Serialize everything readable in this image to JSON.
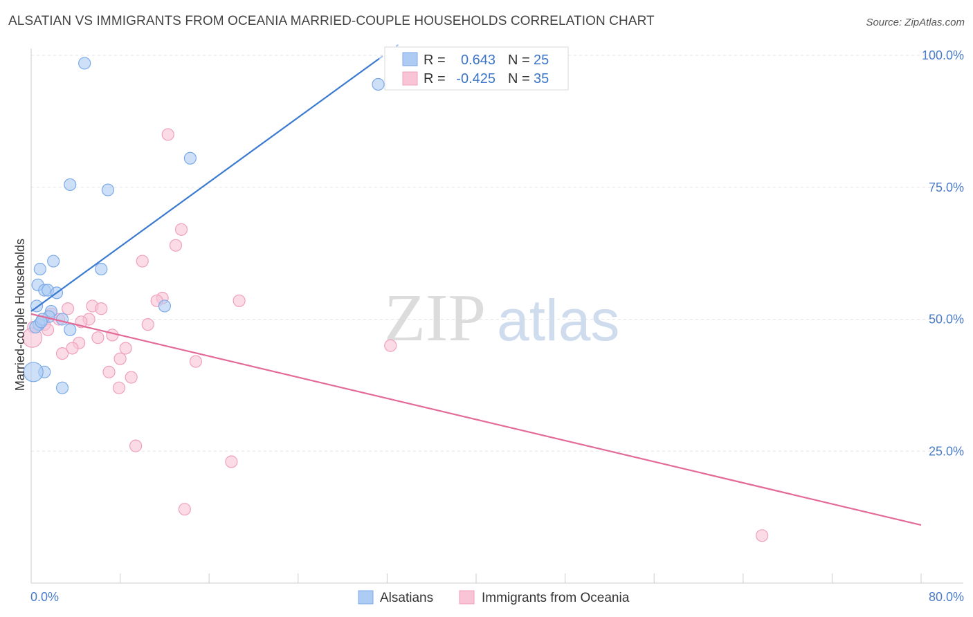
{
  "header": {
    "title": "ALSATIAN VS IMMIGRANTS FROM OCEANIA MARRIED-COUPLE HOUSEHOLDS CORRELATION CHART",
    "source": "Source: ZipAtlas.com"
  },
  "watermark": {
    "zip": "ZIP",
    "atlas": "atlas"
  },
  "chart_data": {
    "type": "scatter",
    "ylabel": "Married-couple Households",
    "xlim": [
      0,
      80
    ],
    "ylim": [
      0,
      105
    ],
    "x_tick_labels": [
      {
        "value": 0,
        "label": "0.0%"
      },
      {
        "value": 80,
        "label": "80.0%"
      }
    ],
    "y_tick_labels": [
      {
        "value": 100,
        "label": "100.0%"
      },
      {
        "value": 75,
        "label": "75.0%"
      },
      {
        "value": 50,
        "label": "50.0%"
      },
      {
        "value": 25,
        "label": "25.0%"
      }
    ],
    "y_gridlines": [
      100,
      75,
      50,
      25
    ],
    "x_minor_ticks": [
      0,
      8,
      16,
      24,
      32,
      40,
      48,
      56,
      64,
      72,
      80
    ],
    "stats": [
      {
        "r_label": "R =",
        "r": "0.643",
        "n_label": "N =",
        "n": "25"
      },
      {
        "r_label": "R =",
        "r": "-0.425",
        "n_label": "N =",
        "n": "35"
      }
    ],
    "series": [
      {
        "name": "Alsatians",
        "color": "#7baae8",
        "fill": "#aecbf3",
        "line_color": "#3a7ad0",
        "trend": {
          "x0": 0,
          "y0": 51.5,
          "x1": 33,
          "y1": 102
        },
        "points": [
          {
            "x": 4.8,
            "y": 98.5
          },
          {
            "x": 31.2,
            "y": 94.5
          },
          {
            "x": 14.3,
            "y": 80.5
          },
          {
            "x": 3.5,
            "y": 75.5
          },
          {
            "x": 6.9,
            "y": 74.5
          },
          {
            "x": 2.0,
            "y": 61.0
          },
          {
            "x": 0.8,
            "y": 59.5
          },
          {
            "x": 6.3,
            "y": 59.5
          },
          {
            "x": 0.6,
            "y": 56.5
          },
          {
            "x": 1.2,
            "y": 55.5
          },
          {
            "x": 1.5,
            "y": 55.5
          },
          {
            "x": 2.3,
            "y": 55.0
          },
          {
            "x": 12.0,
            "y": 52.5
          },
          {
            "x": 0.5,
            "y": 52.5
          },
          {
            "x": 1.8,
            "y": 51.5
          },
          {
            "x": 1.6,
            "y": 50.5
          },
          {
            "x": 2.8,
            "y": 50.0
          },
          {
            "x": 0.7,
            "y": 49.0
          },
          {
            "x": 3.5,
            "y": 48.0
          },
          {
            "x": 0.4,
            "y": 48.5
          },
          {
            "x": 1.2,
            "y": 40.0
          },
          {
            "x": 0.2,
            "y": 40.0
          },
          {
            "x": 2.8,
            "y": 37.0
          },
          {
            "x": 1.0,
            "y": 50.0
          },
          {
            "x": 0.9,
            "y": 49.5
          }
        ]
      },
      {
        "name": "Immigrants from Oceania",
        "color": "#f0a0bd",
        "fill": "#f9c5d6",
        "line_color": "#e46a98",
        "trend": {
          "x0": 0,
          "y0": 51.0,
          "x1": 80,
          "y1": 11.0
        },
        "points": [
          {
            "x": 12.3,
            "y": 85.0
          },
          {
            "x": 13.5,
            "y": 67.0
          },
          {
            "x": 13.0,
            "y": 64.0
          },
          {
            "x": 10.0,
            "y": 61.0
          },
          {
            "x": 18.7,
            "y": 53.5
          },
          {
            "x": 11.8,
            "y": 54.0
          },
          {
            "x": 11.3,
            "y": 53.5
          },
          {
            "x": 5.5,
            "y": 52.5
          },
          {
            "x": 6.3,
            "y": 52.0
          },
          {
            "x": 3.3,
            "y": 52.0
          },
          {
            "x": 1.8,
            "y": 51.0
          },
          {
            "x": 2.5,
            "y": 50.0
          },
          {
            "x": 5.2,
            "y": 50.0
          },
          {
            "x": 4.5,
            "y": 49.5
          },
          {
            "x": 10.5,
            "y": 49.0
          },
          {
            "x": 1.2,
            "y": 49.0
          },
          {
            "x": 0.2,
            "y": 48.5
          },
          {
            "x": 1.5,
            "y": 48.0
          },
          {
            "x": 7.3,
            "y": 47.0
          },
          {
            "x": 6.0,
            "y": 46.5
          },
          {
            "x": 4.3,
            "y": 45.5
          },
          {
            "x": 3.7,
            "y": 44.5
          },
          {
            "x": 8.5,
            "y": 44.5
          },
          {
            "x": 2.8,
            "y": 43.5
          },
          {
            "x": 8.0,
            "y": 42.5
          },
          {
            "x": 14.8,
            "y": 42.0
          },
          {
            "x": 32.3,
            "y": 45.0
          },
          {
            "x": 7.0,
            "y": 40.0
          },
          {
            "x": 9.0,
            "y": 39.0
          },
          {
            "x": 7.9,
            "y": 37.0
          },
          {
            "x": 9.4,
            "y": 26.0
          },
          {
            "x": 18.0,
            "y": 23.0
          },
          {
            "x": 13.8,
            "y": 14.0
          },
          {
            "x": 65.7,
            "y": 9.0
          },
          {
            "x": 0.1,
            "y": 46.5
          }
        ]
      }
    ]
  }
}
